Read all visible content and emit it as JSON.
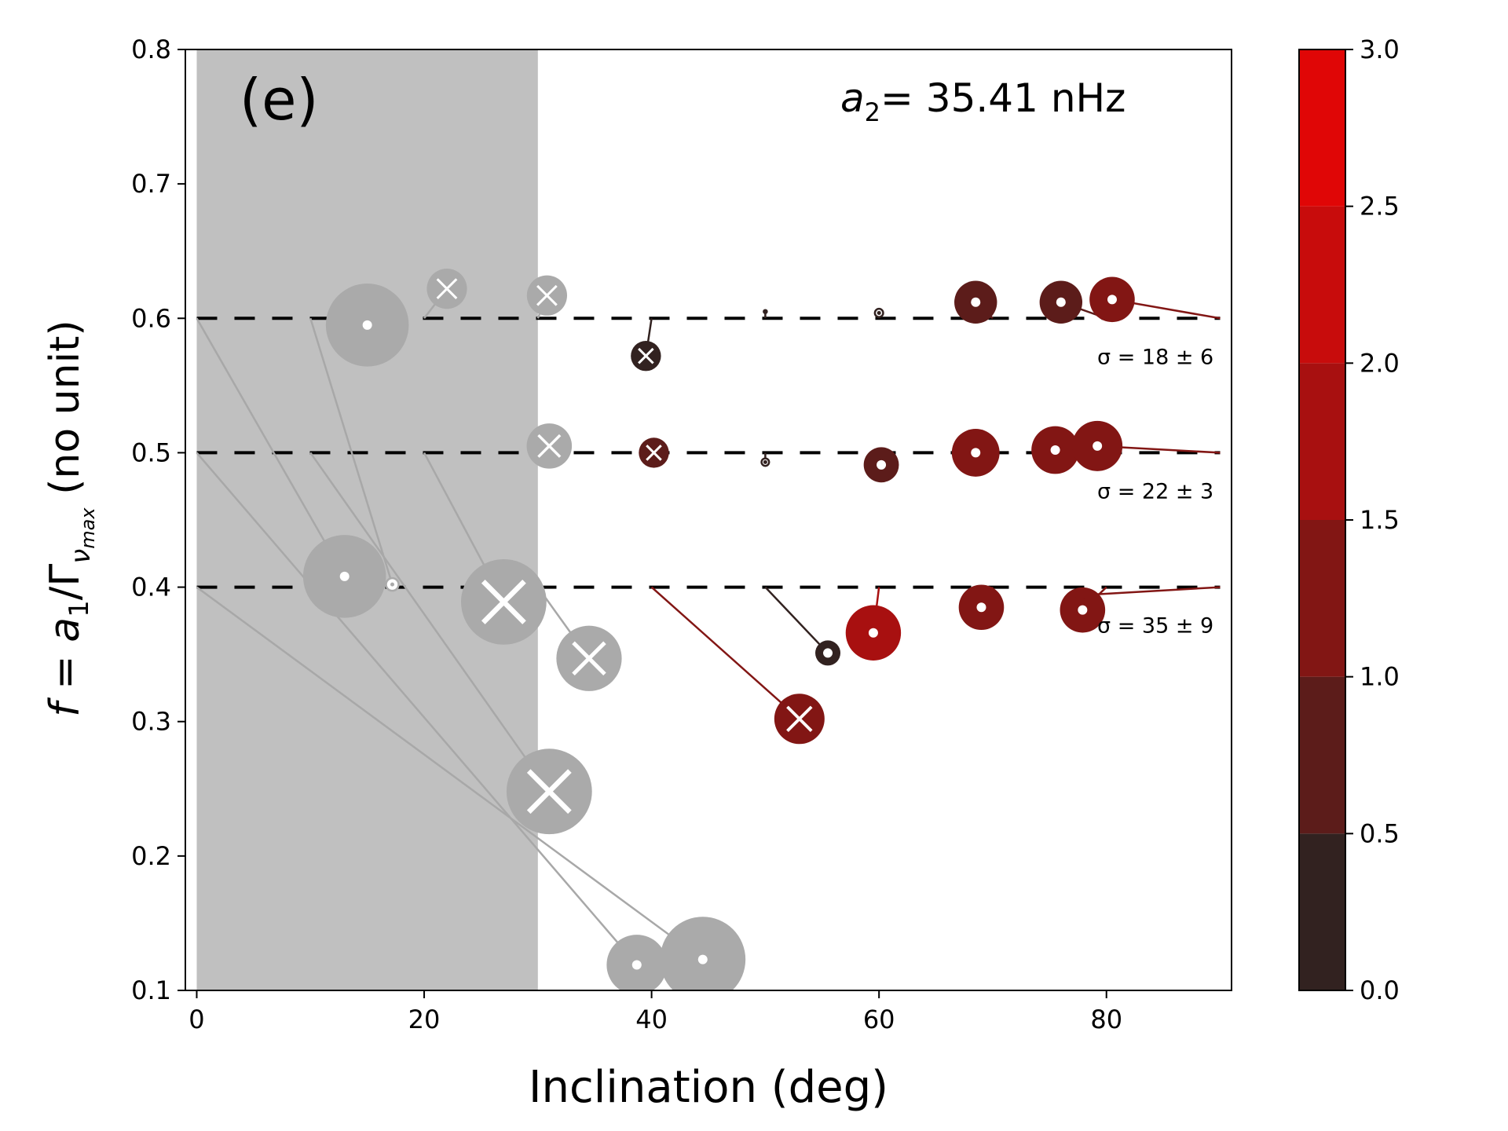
{
  "chart_data": {
    "type": "scatter",
    "panel_label": "(e)",
    "annotation": {
      "symbol": "a",
      "subscript": "2",
      "text": "= 35.41 nHz"
    },
    "xlabel": "Inclination (deg)",
    "ylabel": {
      "prefix": "f = a",
      "sub1": "1",
      "mid": "/Γ",
      "sub2": "ν",
      "sub3": "max",
      "suffix": " (no unit)"
    },
    "xlim": [
      -1,
      91
    ],
    "ylim": [
      0.1,
      0.8
    ],
    "x_ticks": [
      0,
      20,
      40,
      60,
      80
    ],
    "x_tick_labels": [
      "0",
      "20",
      "40",
      "60",
      "80"
    ],
    "y_ticks": [
      0.1,
      0.2,
      0.3,
      0.4,
      0.5,
      0.6,
      0.7,
      0.8
    ],
    "y_tick_labels": [
      "0.1",
      "0.2",
      "0.3",
      "0.4",
      "0.5",
      "0.6",
      "0.7",
      "0.8"
    ],
    "shaded_region": {
      "x_range": [
        0,
        30
      ],
      "color": "#c0c0c0"
    },
    "reference_lines": [
      {
        "y": 0.6,
        "sigma_label": "σ = 18 ± 6"
      },
      {
        "y": 0.5,
        "sigma_label": "σ = 22 ± 3"
      },
      {
        "y": 0.4,
        "sigma_label": "σ = 35 ± 9"
      }
    ],
    "colorbar": {
      "ticks": [
        0.0,
        0.5,
        1.0,
        1.5,
        2.0,
        2.5,
        3.0
      ],
      "tick_labels": [
        "0.0",
        "0.5",
        "1.0",
        "1.5",
        "2.0",
        "2.5",
        "3.0"
      ],
      "colors": [
        "#322220",
        "#5c1c1a",
        "#821614",
        "#a81010",
        "#c80c0c",
        "#e00606",
        "#ff0000"
      ]
    },
    "points": [
      {
        "x": 15,
        "y": 0.595,
        "true_x": 15,
        "true_y": 0.6,
        "size": 3.3,
        "marker": "dot",
        "color": "#aaaaaa"
      },
      {
        "x": 22,
        "y": 0.622,
        "true_x": 20,
        "true_y": 0.6,
        "size": 1.6,
        "marker": "x",
        "color": "#aaaaaa"
      },
      {
        "x": 30.8,
        "y": 0.617,
        "true_x": 30,
        "true_y": 0.6,
        "size": 1.6,
        "marker": "x",
        "color": "#aaaaaa"
      },
      {
        "x": 39.5,
        "y": 0.572,
        "true_x": 40,
        "true_y": 0.6,
        "size": 1.2,
        "marker": "x",
        "color": "#322220"
      },
      {
        "x": 50,
        "y": 0.605,
        "true_x": 50,
        "true_y": 0.6,
        "size": 0.05,
        "marker": "ring",
        "color": "#322220"
      },
      {
        "x": 60,
        "y": 0.604,
        "true_x": 60,
        "true_y": 0.6,
        "size": 0.33,
        "marker": "ring",
        "color": "#322220"
      },
      {
        "x": 68.5,
        "y": 0.612,
        "true_x": 70,
        "true_y": 0.6,
        "size": 1.7,
        "marker": "dot",
        "color": "#5c1c1a"
      },
      {
        "x": 76,
        "y": 0.612,
        "true_x": 80,
        "true_y": 0.6,
        "size": 1.7,
        "marker": "dot",
        "color": "#5c1c1a"
      },
      {
        "x": 80.5,
        "y": 0.614,
        "true_x": 90,
        "true_y": 0.6,
        "size": 1.8,
        "marker": "dot",
        "color": "#821614"
      },
      {
        "x": 31,
        "y": 0.505,
        "true_x": 30,
        "true_y": 0.5,
        "size": 1.8,
        "marker": "x",
        "color": "#aaaaaa"
      },
      {
        "x": 40.2,
        "y": 0.5,
        "true_x": 40,
        "true_y": 0.5,
        "size": 1.2,
        "marker": "x",
        "color": "#5c1c1a"
      },
      {
        "x": 50,
        "y": 0.493,
        "true_x": 50,
        "true_y": 0.5,
        "size": 0.3,
        "marker": "ring",
        "color": "#322220"
      },
      {
        "x": 60.2,
        "y": 0.491,
        "true_x": 60,
        "true_y": 0.5,
        "size": 1.4,
        "marker": "dot",
        "color": "#5c1c1a"
      },
      {
        "x": 68.5,
        "y": 0.5,
        "true_x": 70,
        "true_y": 0.5,
        "size": 1.9,
        "marker": "dot",
        "color": "#821614"
      },
      {
        "x": 75.5,
        "y": 0.502,
        "true_x": 80,
        "true_y": 0.5,
        "size": 1.9,
        "marker": "dot",
        "color": "#821614"
      },
      {
        "x": 79.2,
        "y": 0.505,
        "true_x": 90,
        "true_y": 0.5,
        "size": 2.0,
        "marker": "dot",
        "color": "#821614"
      },
      {
        "x": 13,
        "y": 0.408,
        "true_x": 0,
        "true_y": 0.6,
        "size": 3.3,
        "marker": "dot",
        "color": "#aaaaaa"
      },
      {
        "x": 17.2,
        "y": 0.402,
        "true_x": 10,
        "true_y": 0.6,
        "size": 0.5,
        "marker": "ring",
        "color": "#aaaaaa"
      },
      {
        "x": 27,
        "y": 0.389,
        "true_x": 20,
        "true_y": 0.5,
        "size": 3.4,
        "marker": "x",
        "color": "#aaaaaa"
      },
      {
        "x": 34.5,
        "y": 0.347,
        "true_x": 30,
        "true_y": 0.4,
        "size": 2.6,
        "marker": "x",
        "color": "#aaaaaa"
      },
      {
        "x": 31,
        "y": 0.248,
        "true_x": 10,
        "true_y": 0.5,
        "size": 3.4,
        "marker": "x",
        "color": "#aaaaaa"
      },
      {
        "x": 38.7,
        "y": 0.119,
        "true_x": 0,
        "true_y": 0.5,
        "size": 2.4,
        "marker": "dot",
        "color": "#aaaaaa"
      },
      {
        "x": 44.5,
        "y": 0.123,
        "true_x": 0,
        "true_y": 0.4,
        "size": 3.4,
        "marker": "dot",
        "color": "#aaaaaa"
      },
      {
        "x": 53,
        "y": 0.302,
        "true_x": 40,
        "true_y": 0.4,
        "size": 2.0,
        "marker": "x",
        "color": "#821614"
      },
      {
        "x": 55.5,
        "y": 0.351,
        "true_x": 50,
        "true_y": 0.4,
        "size": 1.0,
        "marker": "dot",
        "color": "#322220"
      },
      {
        "x": 59.5,
        "y": 0.366,
        "true_x": 60,
        "true_y": 0.4,
        "size": 2.2,
        "marker": "dot",
        "color": "#a81010"
      },
      {
        "x": 69,
        "y": 0.385,
        "true_x": 70,
        "true_y": 0.4,
        "size": 1.8,
        "marker": "dot",
        "color": "#821614"
      },
      {
        "x": 77.9,
        "y": 0.383,
        "true_x": 80,
        "true_y": 0.4,
        "size": 1.8,
        "marker": "dot",
        "color": "#821614"
      },
      {
        "x": 77.7,
        "y": 0.394,
        "true_x": 90,
        "true_y": 0.4,
        "size": 0.4,
        "marker": "dot",
        "color": "#821614"
      }
    ]
  }
}
